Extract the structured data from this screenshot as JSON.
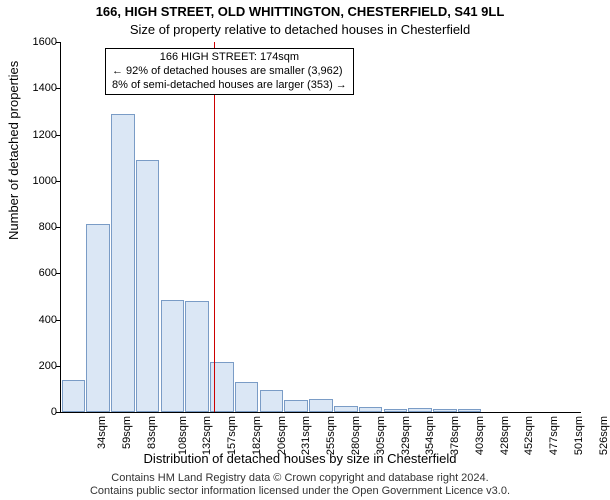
{
  "title_line1": "166, HIGH STREET, OLD WHITTINGTON, CHESTERFIELD, S41 9LL",
  "title_line2": "Size of property relative to detached houses in Chesterfield",
  "y_axis_label": "Number of detached properties",
  "x_axis_label": "Distribution of detached houses by size in Chesterfield",
  "footer_line1": "Contains HM Land Registry data © Crown copyright and database right 2024.",
  "footer_line2": "Contains public sector information licensed under the Open Government Licence v3.0.",
  "title_fontsize": 13,
  "subtitle_fontsize": 13,
  "axis_label_fontsize": 13,
  "tick_fontsize": 11,
  "footer_fontsize": 11,
  "callout_fontsize": 11,
  "background_color": "#ffffff",
  "bar_fill_color": "#dbe7f5",
  "bar_border_color": "#7a9cc6",
  "marker_line_color": "#cc0000",
  "callout_border_color": "#000000",
  "text_color": "#000000",
  "footer_color": "#333333",
  "chart": {
    "type": "histogram",
    "ylim": [
      0,
      1600
    ],
    "yticks": [
      0,
      200,
      400,
      600,
      800,
      1000,
      1200,
      1400,
      1600
    ],
    "x_categories": [
      "34sqm",
      "59sqm",
      "83sqm",
      "108sqm",
      "132sqm",
      "157sqm",
      "182sqm",
      "206sqm",
      "231sqm",
      "255sqm",
      "280sqm",
      "305sqm",
      "329sqm",
      "354sqm",
      "378sqm",
      "403sqm",
      "428sqm",
      "452sqm",
      "477sqm",
      "501sqm",
      "526sqm"
    ],
    "values": [
      140,
      815,
      1290,
      1090,
      485,
      480,
      215,
      130,
      95,
      50,
      55,
      25,
      20,
      15,
      18,
      12,
      15,
      0,
      0,
      0,
      0
    ],
    "bar_width_ratio": 0.95,
    "marker_position_sqm": 174,
    "x_min_sqm": 34,
    "x_step_sqm": 24.6
  },
  "callout": {
    "line1": "166 HIGH STREET: 174sqm",
    "line2": "← 92% of detached houses are smaller (3,962)",
    "line3": "8% of semi-detached houses are larger (353) →"
  }
}
